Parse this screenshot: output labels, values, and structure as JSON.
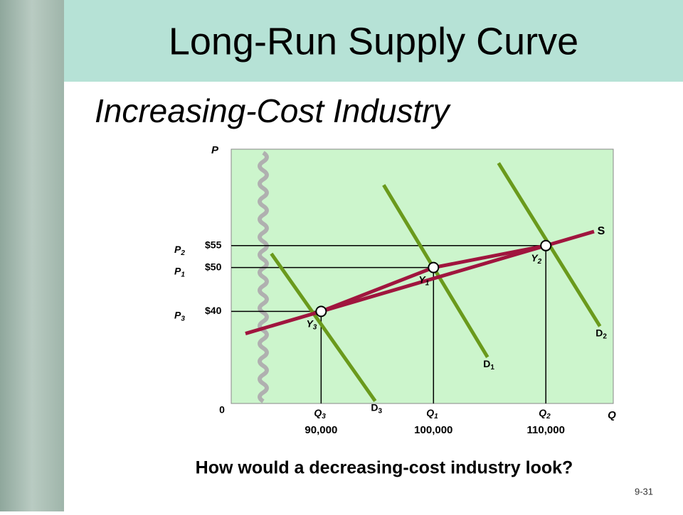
{
  "slide": {
    "title": "Long-Run Supply Curve",
    "subtitle": "Increasing-Cost Industry",
    "question": "How would a decreasing-cost industry look?",
    "page_number": "9-31"
  },
  "chart_data": {
    "type": "line",
    "y_axis_label": "P",
    "x_axis_label": "Q",
    "origin_label": "0",
    "x": [
      90000,
      100000,
      110000
    ],
    "series": [
      {
        "name": "S",
        "color": "#a0153e",
        "values": [
          40,
          50,
          55
        ]
      }
    ],
    "point_labels": [
      "Y3",
      "Y1",
      "Y2"
    ],
    "price_labels": [
      "P3",
      "P1",
      "P2"
    ],
    "quantity_labels": [
      "Q3",
      "Q1",
      "Q2"
    ],
    "demand_labels": [
      "D3",
      "D1",
      "D2"
    ],
    "demand_color": "#6a9a1c",
    "xlim": [
      82000,
      116000
    ],
    "ylim": [
      19,
      77
    ],
    "xticks": [
      {
        "value": 90000,
        "label": "90,000"
      },
      {
        "value": 100000,
        "label": "100,000"
      },
      {
        "value": 110000,
        "label": "110,000"
      }
    ],
    "yticks": [
      {
        "value": 40,
        "label": "$40"
      },
      {
        "value": 50,
        "label": "$50"
      },
      {
        "value": 55,
        "label": "$55"
      }
    ]
  }
}
